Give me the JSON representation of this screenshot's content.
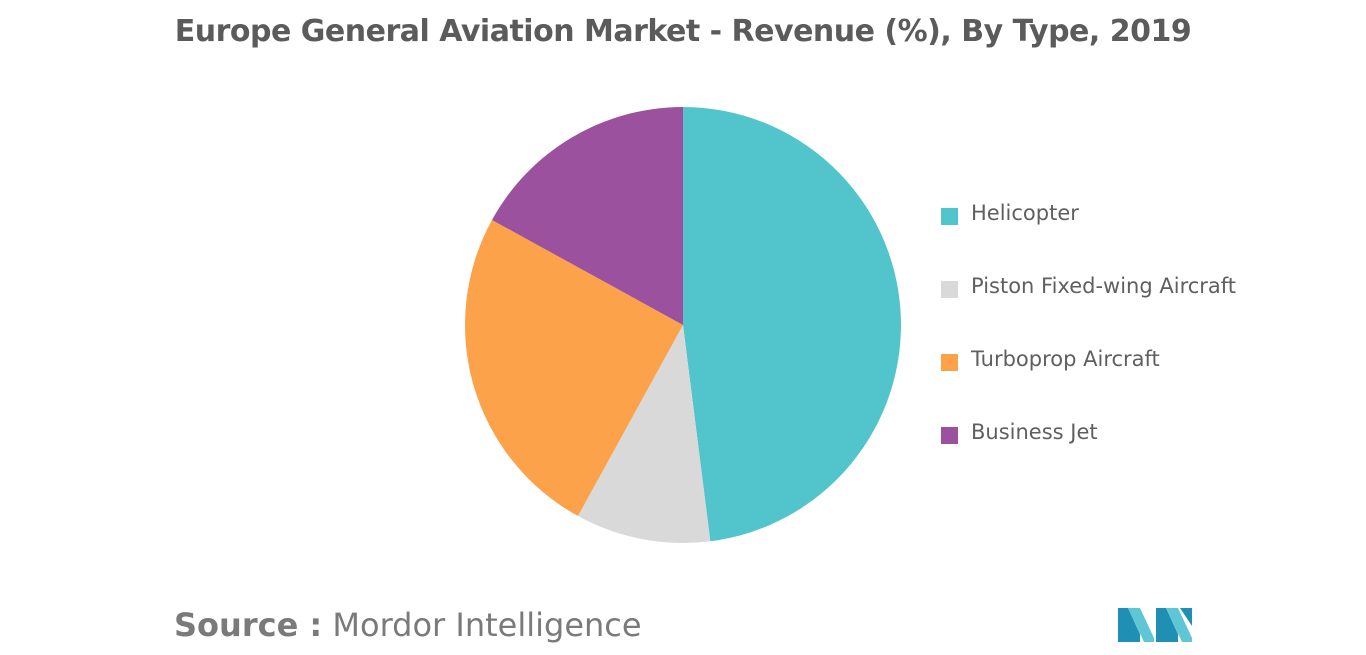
{
  "chart_data": {
    "type": "pie",
    "title": "Europe General Aviation Market - Revenue (%), By Type, 2019",
    "categories": [
      "Helicopter",
      "Piston Fixed-wing Aircraft",
      "Turboprop Aircraft",
      "Business Jet"
    ],
    "values": [
      48,
      10,
      25,
      17
    ],
    "colors": [
      "#52c4cb",
      "#d9d9d9",
      "#fba24a",
      "#9b519e"
    ],
    "start_angle_deg": 0,
    "direction": "clockwise",
    "legend_position": "right"
  },
  "legend": {
    "items": [
      {
        "label": "Helicopter",
        "color": "#52c4cb"
      },
      {
        "label": "Piston Fixed-wing Aircraft",
        "color": "#d9d9d9"
      },
      {
        "label": "Turboprop Aircraft",
        "color": "#fba24a"
      },
      {
        "label": "Business Jet",
        "color": "#9b519e"
      }
    ]
  },
  "footer": {
    "source_label": "Source :",
    "source_name": "Mordor Intelligence",
    "logo_icon": "mordor-intelligence-logo-icon"
  }
}
